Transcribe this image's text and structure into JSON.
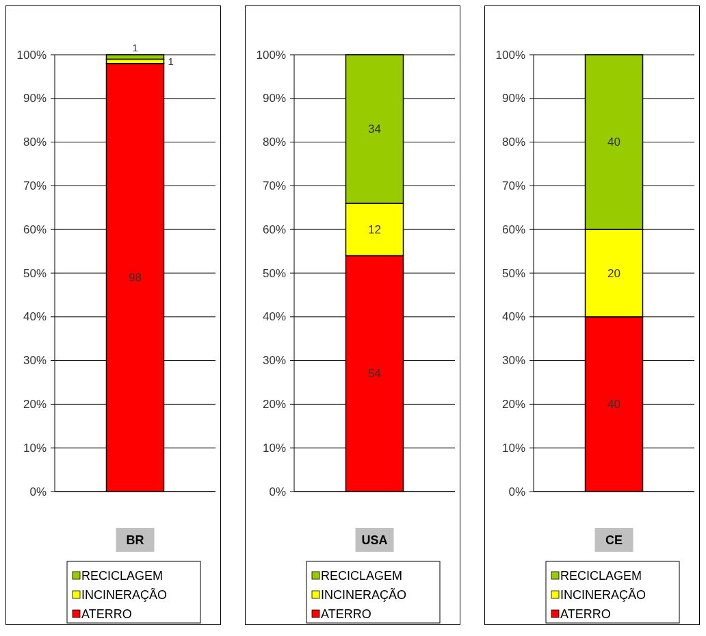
{
  "chart_data": [
    {
      "type": "bar",
      "stacked": true,
      "categories": [
        "BR"
      ],
      "series": [
        {
          "name": "ATERRO",
          "color": "#ff0000",
          "values": [
            98
          ]
        },
        {
          "name": "INCINERAÇÃO",
          "color": "#ffff00",
          "values": [
            1
          ]
        },
        {
          "name": "RECICLAGEM",
          "color": "#99cc00",
          "values": [
            1
          ]
        }
      ],
      "ylim": [
        0,
        100
      ],
      "yticks": [
        {
          "value": 0,
          "label": "0%"
        },
        {
          "value": 10,
          "label": "10%"
        },
        {
          "value": 20,
          "label": "20%"
        },
        {
          "value": 30,
          "label": "30%"
        },
        {
          "value": 40,
          "label": "40%"
        },
        {
          "value": 50,
          "label": "50%"
        },
        {
          "value": 60,
          "label": "60%"
        },
        {
          "value": 70,
          "label": "70%"
        },
        {
          "value": 80,
          "label": "80%"
        },
        {
          "value": 90,
          "label": "90%"
        },
        {
          "value": 100,
          "label": "100%"
        }
      ],
      "grid": "y",
      "legend": "bottom",
      "data_labels": true
    },
    {
      "type": "bar",
      "stacked": true,
      "categories": [
        "USA"
      ],
      "series": [
        {
          "name": "ATERRO",
          "color": "#ff0000",
          "values": [
            54
          ]
        },
        {
          "name": "INCINERAÇÃO",
          "color": "#ffff00",
          "values": [
            12
          ]
        },
        {
          "name": "RECICLAGEM",
          "color": "#99cc00",
          "values": [
            34
          ]
        }
      ],
      "ylim": [
        0,
        100
      ],
      "yticks": [
        {
          "value": 0,
          "label": "0%"
        },
        {
          "value": 10,
          "label": "10%"
        },
        {
          "value": 20,
          "label": "20%"
        },
        {
          "value": 30,
          "label": "30%"
        },
        {
          "value": 40,
          "label": "40%"
        },
        {
          "value": 50,
          "label": "50%"
        },
        {
          "value": 60,
          "label": "60%"
        },
        {
          "value": 70,
          "label": "70%"
        },
        {
          "value": 80,
          "label": "80%"
        },
        {
          "value": 90,
          "label": "90%"
        },
        {
          "value": 100,
          "label": "100%"
        }
      ],
      "grid": "y",
      "legend": "bottom",
      "data_labels": true
    },
    {
      "type": "bar",
      "stacked": true,
      "categories": [
        "CE"
      ],
      "series": [
        {
          "name": "ATERRO",
          "color": "#ff0000",
          "values": [
            40
          ]
        },
        {
          "name": "INCINERAÇÃO",
          "color": "#ffff00",
          "values": [
            20
          ]
        },
        {
          "name": "RECICLAGEM",
          "color": "#99cc00",
          "values": [
            40
          ]
        }
      ],
      "ylim": [
        0,
        100
      ],
      "yticks": [
        {
          "value": 0,
          "label": "0%"
        },
        {
          "value": 10,
          "label": "10%"
        },
        {
          "value": 20,
          "label": "20%"
        },
        {
          "value": 30,
          "label": "30%"
        },
        {
          "value": 40,
          "label": "40%"
        },
        {
          "value": 50,
          "label": "50%"
        },
        {
          "value": 60,
          "label": "60%"
        },
        {
          "value": 70,
          "label": "70%"
        },
        {
          "value": 80,
          "label": "80%"
        },
        {
          "value": 90,
          "label": "90%"
        },
        {
          "value": 100,
          "label": "100%"
        }
      ],
      "grid": "y",
      "legend": "bottom",
      "data_labels": true
    }
  ]
}
